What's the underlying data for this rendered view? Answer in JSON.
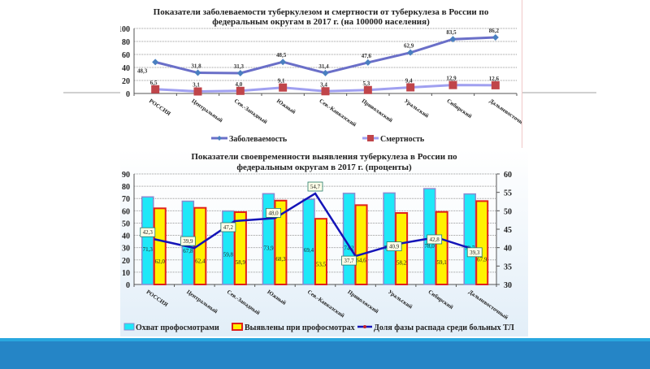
{
  "slide": {
    "footer_color": "#2585c6",
    "footer_accent": "#29a7df"
  },
  "chart_data": [
    {
      "type": "line",
      "title": "Показатели заболеваемости туберкулезом и смертности от туберкулеза в России по федеральным округам в 2017 г. (на 100000 населения)",
      "title_line1": "Показатели заболеваемости туберкулезом и смертности от туберкулеза в России по",
      "title_line2": "федеральным округам в 2017 г. (на 100000 населения)",
      "categories": [
        "РОССИЯ",
        "Центральный",
        "Сев.-Западный",
        "Южный",
        "Сев.-Кавказский",
        "Приволжский",
        "Уральский",
        "Сибирский",
        "Дальневосточный"
      ],
      "series": [
        {
          "name": "Заболеваемость",
          "values": [
            48.3,
            31.8,
            31.3,
            48.5,
            31.4,
            47.6,
            62.9,
            83.5,
            86.2
          ],
          "labels": [
            "48,3",
            "31,8",
            "31,3",
            "48,5",
            "31,4",
            "47,6",
            "62,9",
            "83,5",
            "86,2"
          ],
          "color": "#6a6fc8",
          "marker": "diamond",
          "marker_color": "#4a7fc0"
        },
        {
          "name": "Смертность",
          "values": [
            6.5,
            3.1,
            4.0,
            9.1,
            3.4,
            5.3,
            9.4,
            12.9,
            12.6
          ],
          "labels": [
            "6,5",
            "3,1",
            "4,0",
            "9,1",
            "3,4",
            "5,3",
            "9,4",
            "12,9",
            "12,6"
          ],
          "color": "#a0a0f0",
          "marker": "square",
          "marker_color": "#c0454a"
        }
      ],
      "yticks": [
        "0",
        "20",
        "40",
        "60",
        "80",
        "100"
      ],
      "ylim": [
        0,
        100
      ],
      "grid": true,
      "legend": "bottom"
    },
    {
      "type": "bar",
      "title": "Показатели своевременности выявления туберкулеза в России по федеральным округам в 2017 г. (проценты)",
      "title_line1": "Показатели своевременности выявления туберкулеза в России по",
      "title_line2": "федеральным округам в 2017 г. (проценты)",
      "categories": [
        "РОССИЯ",
        "Центральный",
        "Сев.-Западный",
        "Южный",
        "Сев.-Кавказский",
        "Приволжский",
        "Уральский",
        "Сибирский",
        "Дальневосточный"
      ],
      "series": [
        {
          "name": "Охват профосмотрами",
          "type": "bar",
          "axis": "left",
          "values": [
            71.3,
            67.8,
            59.8,
            73.9,
            69.4,
            74.2,
            74.5,
            78.0,
            73.7
          ],
          "labels": [
            "71,3",
            "67,8",
            "59,8",
            "73,9",
            "69,4",
            "74,2",
            "74,5",
            "78,0",
            "73,7"
          ],
          "color": "#1ee8f8",
          "border": "#8a8ad0"
        },
        {
          "name": "Выявлены при профосмотрах",
          "type": "bar",
          "axis": "left",
          "values": [
            62.0,
            62.4,
            58.9,
            68.3,
            53.5,
            64.6,
            58.2,
            59.1,
            67.9
          ],
          "labels": [
            "62,0",
            "62,4",
            "58,9",
            "68,3",
            "53,5",
            "64,6",
            "58,2",
            "59,1",
            "67,9"
          ],
          "color": "#fff200",
          "border": "#e0201a"
        },
        {
          "name": "Доля фазы распада среди больных ТЛ",
          "type": "line",
          "axis": "right",
          "values": [
            42.3,
            39.9,
            47.2,
            48.0,
            54.7,
            37.7,
            40.9,
            42.8,
            39.3
          ],
          "labels": [
            "42,3",
            "39,9",
            "47,2",
            "48,0",
            "54,7",
            "37,7",
            "40,9",
            "42,8",
            "39,3"
          ],
          "color": "#1414b8"
        }
      ],
      "yticks_left": [
        "0",
        "10",
        "20",
        "30",
        "40",
        "50",
        "60",
        "70",
        "80",
        "90"
      ],
      "yticks_right": [
        "30",
        "35",
        "40",
        "45",
        "50",
        "55",
        "60"
      ],
      "ylim_left": [
        0,
        90
      ],
      "ylim_right": [
        30,
        60
      ],
      "grid": true,
      "legend": "bottom"
    }
  ]
}
